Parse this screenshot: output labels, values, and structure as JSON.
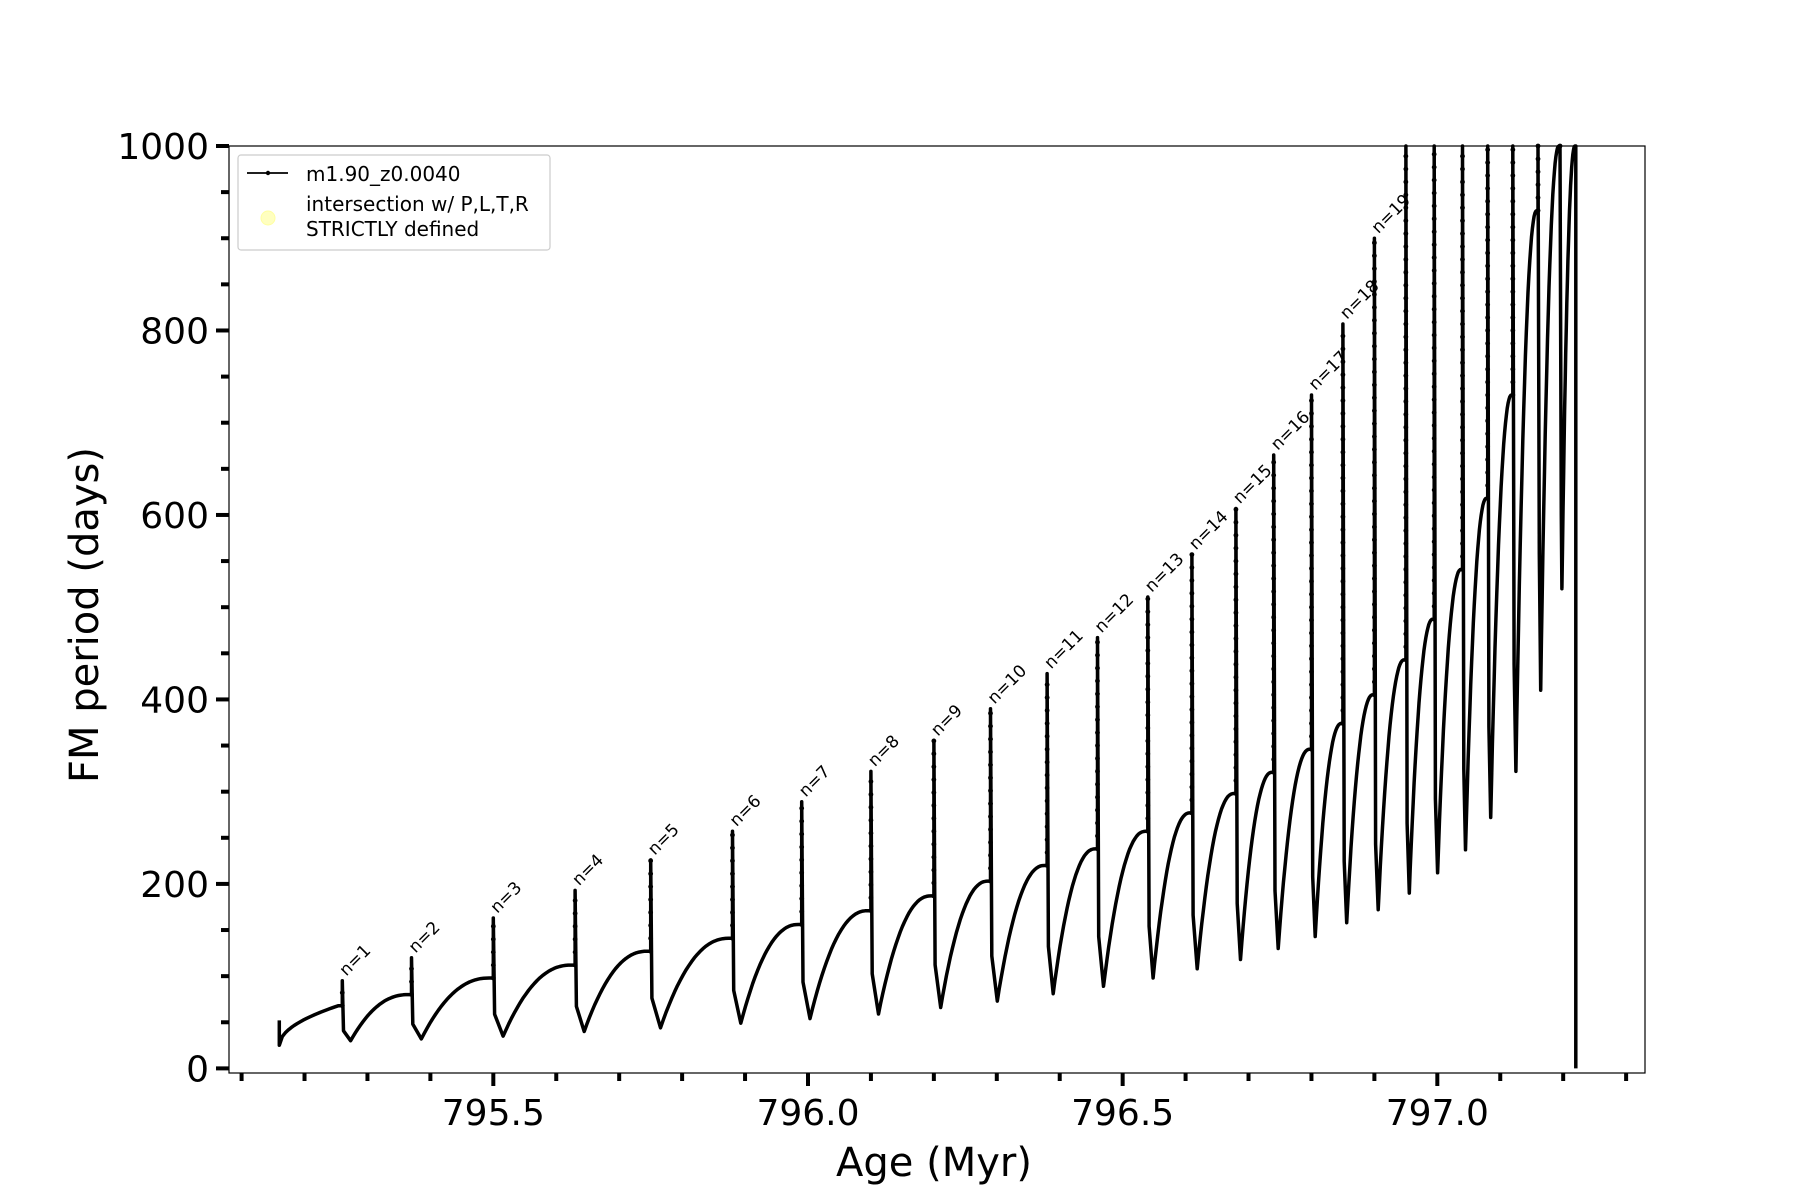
{
  "chart_data": {
    "type": "line",
    "title": "",
    "xlabel": "Age (Myr)",
    "ylabel": "FM period (days)",
    "xlim": [
      795.08,
      797.33
    ],
    "ylim": [
      -5,
      1000
    ],
    "xticks": [
      795.5,
      796.0,
      796.5,
      797.0
    ],
    "xtick_labels": [
      "795.5",
      "796.0",
      "796.5",
      "797.0"
    ],
    "yticks": [
      0,
      200,
      400,
      600,
      800,
      1000
    ],
    "ytick_labels": [
      "0",
      "200",
      "400",
      "600",
      "800",
      "1000"
    ],
    "grid": false,
    "legend": {
      "location": "upper-left",
      "entries": [
        {
          "label": "m1.90_z0.0040",
          "marker": "line-with-dots",
          "color": "#000000"
        },
        {
          "label_lines": [
            "intersection w/ P,L,T,R",
            "STRICTLY defined"
          ],
          "marker": "circle",
          "color": "#ffffc0"
        }
      ]
    },
    "series": [
      {
        "name": "m1.90_z0.0040",
        "color": "#000000",
        "start": {
          "x": 795.16,
          "y": 25
        },
        "cycles": [
          {
            "label": "n=1",
            "x": 795.26,
            "pre": 68,
            "peak": 95,
            "min": 30
          },
          {
            "label": "n=2",
            "x": 795.37,
            "pre": 80,
            "peak": 120,
            "min": 32
          },
          {
            "label": "n=3",
            "x": 795.5,
            "pre": 98,
            "peak": 163,
            "min": 35
          },
          {
            "label": "n=4",
            "x": 795.63,
            "pre": 112,
            "peak": 193,
            "min": 40
          },
          {
            "label": "n=5",
            "x": 795.75,
            "pre": 127,
            "peak": 226,
            "min": 44
          },
          {
            "label": "n=6",
            "x": 795.88,
            "pre": 141,
            "peak": 257,
            "min": 49
          },
          {
            "label": "n=7",
            "x": 795.99,
            "pre": 156,
            "peak": 289,
            "min": 54
          },
          {
            "label": "n=8",
            "x": 796.1,
            "pre": 171,
            "peak": 322,
            "min": 59
          },
          {
            "label": "n=9",
            "x": 796.2,
            "pre": 187,
            "peak": 355,
            "min": 66
          },
          {
            "label": "n=10",
            "x": 796.29,
            "pre": 203,
            "peak": 390,
            "min": 73
          },
          {
            "label": "n=11",
            "x": 796.38,
            "pre": 220,
            "peak": 428,
            "min": 81
          },
          {
            "label": "n=12",
            "x": 796.46,
            "pre": 238,
            "peak": 467,
            "min": 89
          },
          {
            "label": "n=13",
            "x": 796.54,
            "pre": 257,
            "peak": 511,
            "min": 98
          },
          {
            "label": "n=14",
            "x": 796.61,
            "pre": 277,
            "peak": 557,
            "min": 108
          },
          {
            "label": "n=15",
            "x": 796.68,
            "pre": 298,
            "peak": 607,
            "min": 118
          },
          {
            "label": "n=16",
            "x": 796.74,
            "pre": 321,
            "peak": 665,
            "min": 130
          },
          {
            "label": "n=17",
            "x": 796.8,
            "pre": 346,
            "peak": 730,
            "min": 143
          },
          {
            "label": "n=18",
            "x": 796.85,
            "pre": 374,
            "peak": 807,
            "min": 158
          },
          {
            "label": "n=19",
            "x": 796.9,
            "pre": 405,
            "peak": 900,
            "min": 172
          },
          {
            "label": "",
            "x": 796.95,
            "pre": 443,
            "peak": 1000,
            "min": 190
          },
          {
            "label": "",
            "x": 796.995,
            "pre": 487,
            "peak": 1000,
            "min": 212
          },
          {
            "label": "",
            "x": 797.04,
            "pre": 541,
            "peak": 1000,
            "min": 237
          },
          {
            "label": "",
            "x": 797.08,
            "pre": 618,
            "peak": 1000,
            "min": 272
          },
          {
            "label": "",
            "x": 797.12,
            "pre": 730,
            "peak": 1000,
            "min": 322
          },
          {
            "label": "",
            "x": 797.16,
            "pre": 930,
            "peak": 1000,
            "min": 410
          },
          {
            "label": "",
            "x": 797.195,
            "pre": 1000,
            "peak": 1000,
            "min": 520
          }
        ],
        "end": {
          "x": 797.22,
          "y": 0
        }
      }
    ]
  }
}
